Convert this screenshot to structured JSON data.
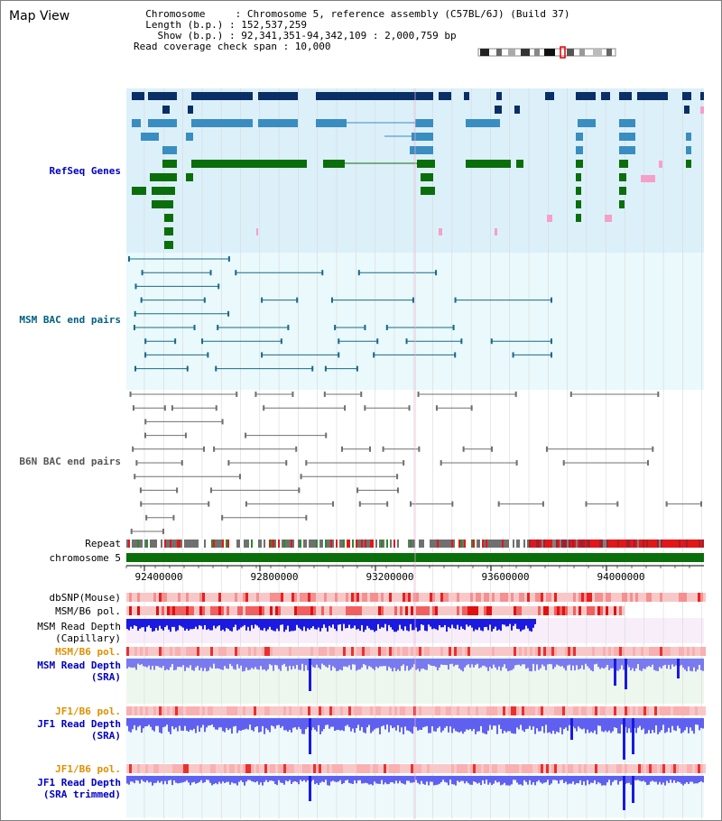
{
  "header": {
    "title": "Map View",
    "info_lines": [
      "  Chromosome     : Chromosome 5, reference assembly (C57BL/6J) (Build 37)",
      "  Length (b.p.) : 152,537,259",
      "    Show (b.p.) : 92,341,351-94,342,109 : 2,000,759 bp",
      "Read coverage check span : 10,000"
    ]
  },
  "tracks": {
    "refseq": "RefSeq Genes",
    "msm_bac": "MSM BAC end pairs",
    "b6n_bac": "B6N BAC end pairs",
    "repeat": "Repeat",
    "chromosome": "chromosome 5",
    "dbsnp": "dbSNP(Mouse)",
    "msm_b6_pol": "MSM/B6 pol.",
    "msm_depth_cap_1": "MSM Read Depth",
    "msm_depth_cap_2": "(Capillary)",
    "msm_b6_pol_sra": "MSM/B6 pol.",
    "msm_depth_sra_1": "MSM Read Depth",
    "msm_depth_sra_2": "(SRA)",
    "jf1_b6_pol": "JF1/B6 pol.",
    "jf1_depth_sra_1": "JF1 Read Depth",
    "jf1_depth_sra_2": "(SRA)",
    "jf1_b6_pol_2": "JF1/B6 pol.",
    "jf1_depth_trim_1": "JF1 Read Depth",
    "jf1_depth_trim_2": "(SRA trimmed)"
  },
  "axis": {
    "ticks": [
      "92400000",
      "92800000",
      "93200000",
      "93600000",
      "94000000"
    ]
  },
  "colors": {
    "refseq_bg": "#dcf0fa",
    "bac_bg": "#eaf9fb",
    "navy": "#0a2e66",
    "steel": "#3a8dc0",
    "green": "#0a6e0a",
    "pink": "#f5a0c8",
    "teal": "#1a6a88",
    "gray": "#707070",
    "red_snp": "#f03a3a",
    "blue_depth": "#1a1ae0",
    "label_blue": "#0000c0",
    "label_orange": "#e09000",
    "label_teal": "#006080"
  }
}
